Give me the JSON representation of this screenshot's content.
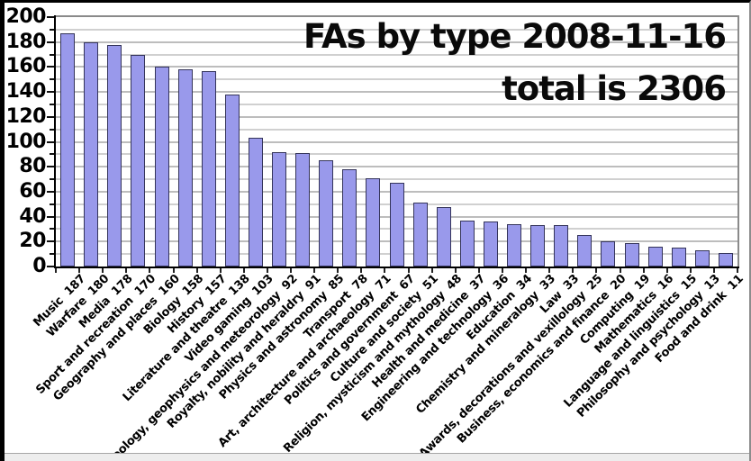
{
  "chart_data": {
    "type": "bar",
    "title_line1": "FAs by type 2008-11-16",
    "title_line2": "total is 2306",
    "categories": [
      "Music",
      "Warfare",
      "Media",
      "Sport and recreation",
      "Geography and places",
      "Biology",
      "History",
      "Literature and theatre",
      "Video gaming",
      "Geology, geophysics and meteorology",
      "Royalty, nobility and heraldry",
      "Physics and astronomy",
      "Transport",
      "Art, architecture and archaeology",
      "Politics and government",
      "Culture and society",
      "Religion, mysticism and mythology",
      "Health and medicine",
      "Engineering and technology",
      "Education",
      "Chemistry and mineralogy",
      "Law",
      "Awards, decorations and vexillology",
      "Business, economics and finance",
      "Computing",
      "Mathematics",
      "Language and linguistics",
      "Philosophy and psychology",
      "Food and drink"
    ],
    "values": [
      187,
      180,
      178,
      170,
      160,
      158,
      157,
      138,
      103,
      92,
      91,
      85,
      78,
      71,
      67,
      51,
      48,
      37,
      36,
      34,
      33,
      33,
      25,
      20,
      19,
      16,
      15,
      13,
      11
    ],
    "xlabel": "",
    "ylabel": "",
    "ylim": [
      0,
      200
    ],
    "y_major_step": 20,
    "y_minor_step": 10,
    "y_tick_labels": [
      "0",
      "20",
      "40",
      "60",
      "80",
      "100",
      "120",
      "140",
      "160",
      "180",
      "200"
    ],
    "grid": "horizontal gridlines every 10 units, light gray",
    "legend": "none",
    "colors": {
      "bar_fill": "#9999EB",
      "bar_border": "#34345a",
      "gridline_major": "#bdbdbd",
      "gridline_minor": "#d0d0d0",
      "axis": "#000000",
      "plot_border": "#8a8a8a",
      "title_text": "#0a0a0a",
      "background": "#ffffff"
    }
  }
}
